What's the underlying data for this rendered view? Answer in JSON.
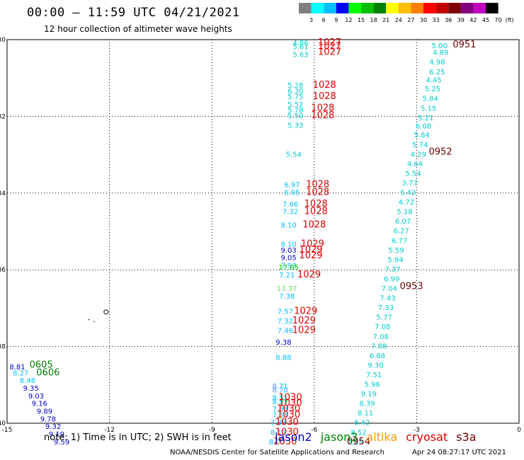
{
  "header": {
    "title": "00:00 – 11:59 UTC 04/21/2021",
    "subtitle": "12 hour collection of altimeter wave heights"
  },
  "color_scale": {
    "unit": "(ft)",
    "labels": [
      "3",
      "6",
      "9",
      "12",
      "15",
      "18",
      "21",
      "24",
      "27",
      "30",
      "33",
      "36",
      "39",
      "42",
      "45",
      "70"
    ],
    "colors": [
      "#7f7f7f",
      "#00ffff",
      "#00bfff",
      "#0000ff",
      "#00ff00",
      "#00c000",
      "#008000",
      "#ffff00",
      "#ffbf00",
      "#ff8000",
      "#ff0000",
      "#c00000",
      "#800000",
      "#800080",
      "#c000c0",
      "#000000"
    ]
  },
  "footer": {
    "note": "note:  1) Time is in UTC;  2) SWH is in feet",
    "credit": "NOAA/NESDIS Center for Satellite Applications and Research",
    "timestamp": "Apr 24 08:27:17 UTC 2021"
  },
  "missions": [
    {
      "name": "jason2",
      "color": "#0000c8"
    },
    {
      "name": "jason3",
      "color": "#008000"
    },
    {
      "name": "altika",
      "color": "#ff9900"
    },
    {
      "name": "cryosat",
      "color": "#dd0000"
    },
    {
      "name": "s3a",
      "color": "#6b0000"
    }
  ],
  "chart_data": {
    "type": "scatter",
    "xlim": [
      -15,
      0
    ],
    "ylim": [
      -40,
      -30
    ],
    "x_ticks": [
      -15,
      -12,
      -9,
      -6,
      -3,
      0
    ],
    "y_ticks": [
      -30,
      -32,
      -34,
      -36,
      -38,
      -40
    ],
    "grid": true,
    "series": [
      {
        "name": "s3a",
        "color": "#6b0000",
        "points": [
          {
            "x": -2.33,
            "y": -30.22,
            "label": "5.00"
          },
          {
            "x": -2.3,
            "y": -30.4,
            "label": "4.89"
          },
          {
            "x": -2.4,
            "y": -30.65,
            "label": "4.98"
          },
          {
            "x": -2.4,
            "y": -30.9,
            "label": "6.25"
          },
          {
            "x": -2.5,
            "y": -31.12,
            "label": "4.45"
          },
          {
            "x": -2.53,
            "y": -31.35,
            "label": "5.25"
          },
          {
            "x": -2.6,
            "y": -31.6,
            "label": "5.84"
          },
          {
            "x": -2.65,
            "y": -31.85,
            "label": "5.15"
          },
          {
            "x": -2.73,
            "y": -32.1,
            "label": "5.21"
          },
          {
            "x": -2.8,
            "y": -32.32,
            "label": "6.08"
          },
          {
            "x": -2.85,
            "y": -32.55,
            "label": "5.84"
          },
          {
            "x": -2.9,
            "y": -32.8,
            "label": "5.74"
          },
          {
            "x": -2.95,
            "y": -33.05,
            "label": "4.29"
          },
          {
            "x": -3.05,
            "y": -33.3,
            "label": "4.64"
          },
          {
            "x": -3.1,
            "y": -33.55,
            "label": "5.54"
          },
          {
            "x": -3.2,
            "y": -33.8,
            "label": "3.77"
          },
          {
            "x": -3.25,
            "y": -34.05,
            "label": "5.42"
          },
          {
            "x": -3.3,
            "y": -34.3,
            "label": "4.72"
          },
          {
            "x": -3.35,
            "y": -34.55,
            "label": "5.18"
          },
          {
            "x": -3.4,
            "y": -34.8,
            "label": "6.07"
          },
          {
            "x": -3.45,
            "y": -35.05,
            "label": "6.27"
          },
          {
            "x": -3.5,
            "y": -35.3,
            "label": "6.77"
          },
          {
            "x": -3.6,
            "y": -35.55,
            "label": "5.59"
          },
          {
            "x": -3.62,
            "y": -35.8,
            "label": "5.94"
          },
          {
            "x": -3.7,
            "y": -36.05,
            "label": "7.37"
          },
          {
            "x": -3.73,
            "y": -36.3,
            "label": "6.99"
          },
          {
            "x": -3.8,
            "y": -36.55,
            "label": "7.04"
          },
          {
            "x": -3.85,
            "y": -36.8,
            "label": "7.43"
          },
          {
            "x": -3.9,
            "y": -37.05,
            "label": "7.33"
          },
          {
            "x": -3.95,
            "y": -37.3,
            "label": "5.77"
          },
          {
            "x": -4.0,
            "y": -37.55,
            "label": "7.08"
          },
          {
            "x": -4.05,
            "y": -37.8,
            "label": "7.08"
          },
          {
            "x": -4.1,
            "y": -38.05,
            "label": "7.88"
          },
          {
            "x": -4.15,
            "y": -38.3,
            "label": "6.68"
          },
          {
            "x": -4.2,
            "y": -38.55,
            "label": "9.30"
          },
          {
            "x": -4.25,
            "y": -38.8,
            "label": "7.51"
          },
          {
            "x": -4.3,
            "y": -39.05,
            "label": "5.96"
          },
          {
            "x": -4.4,
            "y": -39.3,
            "label": "9.19"
          },
          {
            "x": -4.45,
            "y": -39.55,
            "label": "8.39"
          },
          {
            "x": -4.5,
            "y": -39.8,
            "label": "8.11"
          },
          {
            "x": -4.6,
            "y": -40.05,
            "label": "8.42"
          },
          {
            "x": -4.7,
            "y": -40.3,
            "label": "8.52"
          },
          {
            "x": -4.8,
            "y": -40.55,
            "label": "7.65"
          }
        ]
      }
    ],
    "annotations": [
      {
        "x": -1.6,
        "y": -30.2,
        "label": "0951",
        "color": "#6b0000"
      },
      {
        "x": -2.3,
        "y": -33.0,
        "label": "0952",
        "color": "#6b0000"
      },
      {
        "x": -3.15,
        "y": -36.5,
        "label": "0953",
        "color": "#6b0000"
      },
      {
        "x": -4.7,
        "y": -40.55,
        "label": "0954",
        "color": "#6b0000"
      },
      {
        "x": -14.0,
        "y": -38.55,
        "label": "0605",
        "color": "#008000"
      },
      {
        "x": -13.8,
        "y": -38.75,
        "label": "0606",
        "color": "#008000"
      }
    ],
    "cryosat_labels": [
      {
        "x": -5.55,
        "y": -30.15,
        "label": "1027"
      },
      {
        "x": -5.55,
        "y": -30.25,
        "label": "1027"
      },
      {
        "x": -5.55,
        "y": -30.4,
        "label": "1027"
      },
      {
        "x": -5.7,
        "y": -31.25,
        "label": "1028"
      },
      {
        "x": -5.7,
        "y": -31.55,
        "label": "1028"
      },
      {
        "x": -5.75,
        "y": -31.85,
        "label": "1028"
      },
      {
        "x": -5.75,
        "y": -32.05,
        "label": "1028"
      },
      {
        "x": -5.9,
        "y": -33.85,
        "label": "1028"
      },
      {
        "x": -5.9,
        "y": -34.05,
        "label": "1028"
      },
      {
        "x": -5.95,
        "y": -34.35,
        "label": "1028"
      },
      {
        "x": -5.95,
        "y": -34.55,
        "label": "1028"
      },
      {
        "x": -6.0,
        "y": -34.9,
        "label": "1028"
      },
      {
        "x": -6.05,
        "y": -35.4,
        "label": "1029"
      },
      {
        "x": -6.1,
        "y": -35.55,
        "label": "1029"
      },
      {
        "x": -6.1,
        "y": -35.7,
        "label": "1029"
      },
      {
        "x": -6.15,
        "y": -36.2,
        "label": "1029"
      },
      {
        "x": -6.25,
        "y": -37.15,
        "label": "1029"
      },
      {
        "x": -6.3,
        "y": -37.4,
        "label": "1029"
      },
      {
        "x": -6.3,
        "y": -37.65,
        "label": "1029"
      },
      {
        "x": -6.7,
        "y": -39.4,
        "label": "1030"
      },
      {
        "x": -6.7,
        "y": -39.55,
        "label": "1030"
      },
      {
        "x": -6.75,
        "y": -39.7,
        "label": "1030"
      },
      {
        "x": -6.75,
        "y": -39.85,
        "label": "1030"
      },
      {
        "x": -6.8,
        "y": -40.05,
        "label": "1030"
      },
      {
        "x": -6.8,
        "y": -40.3,
        "label": "1030"
      },
      {
        "x": -6.85,
        "y": -40.55,
        "label": "1030"
      }
    ],
    "cryosat_values": [
      {
        "x": -6.4,
        "y": -30.15,
        "label": "4.86",
        "c": "#00cccc"
      },
      {
        "x": -6.4,
        "y": -30.25,
        "label": "5.61",
        "c": "#00cccc"
      },
      {
        "x": -6.4,
        "y": -30.45,
        "label": "5.63",
        "c": "#00cccc"
      },
      {
        "x": -6.55,
        "y": -31.25,
        "label": "5.28",
        "c": "#00cccc"
      },
      {
        "x": -6.55,
        "y": -31.4,
        "label": "6.30",
        "c": "#00cccc"
      },
      {
        "x": -6.55,
        "y": -31.55,
        "label": "5.75",
        "c": "#00cccc"
      },
      {
        "x": -6.55,
        "y": -31.75,
        "label": "5.52",
        "c": "#00cccc"
      },
      {
        "x": -6.55,
        "y": -31.9,
        "label": "5.78",
        "c": "#00cccc"
      },
      {
        "x": -6.55,
        "y": -32.05,
        "label": "5.50",
        "c": "#00cccc"
      },
      {
        "x": -6.55,
        "y": -32.3,
        "label": "5.33",
        "c": "#00cccc"
      },
      {
        "x": -6.6,
        "y": -33.05,
        "label": "5.54",
        "c": "#00cccc"
      },
      {
        "x": -6.65,
        "y": -33.85,
        "label": "6.97",
        "c": "#00bfff"
      },
      {
        "x": -6.65,
        "y": -34.05,
        "label": "6.95",
        "c": "#00bfff"
      },
      {
        "x": -6.7,
        "y": -34.35,
        "label": "7.66",
        "c": "#00bfff"
      },
      {
        "x": -6.7,
        "y": -34.55,
        "label": "7.32",
        "c": "#00bfff"
      },
      {
        "x": -6.75,
        "y": -34.9,
        "label": "8.10",
        "c": "#00bfff"
      },
      {
        "x": -6.75,
        "y": -35.4,
        "label": "8.10",
        "c": "#00bfff"
      },
      {
        "x": -6.75,
        "y": -35.55,
        "label": "9.03",
        "c": "#0000c8"
      },
      {
        "x": -6.75,
        "y": -35.75,
        "label": "9.05",
        "c": "#0000c8"
      },
      {
        "x": -6.75,
        "y": -35.95,
        "label": "7.93",
        "c": "#00bfff"
      },
      {
        "x": -6.75,
        "y": -36.0,
        "label": "17.85",
        "c": "#00cc00"
      },
      {
        "x": -6.8,
        "y": -36.2,
        "label": "7.21",
        "c": "#00bfff"
      },
      {
        "x": -6.8,
        "y": -36.55,
        "label": "13.37",
        "c": "#66dd66"
      },
      {
        "x": -6.8,
        "y": -36.75,
        "label": "7.38",
        "c": "#00bfff"
      },
      {
        "x": -6.85,
        "y": -37.15,
        "label": "7.57",
        "c": "#00bfff"
      },
      {
        "x": -6.85,
        "y": -37.4,
        "label": "7.32",
        "c": "#00bfff"
      },
      {
        "x": -6.85,
        "y": -37.65,
        "label": "7.46",
        "c": "#00bfff"
      },
      {
        "x": -6.9,
        "y": -37.95,
        "label": "9.38",
        "c": "#0000c8"
      },
      {
        "x": -6.9,
        "y": -38.35,
        "label": "8.88",
        "c": "#00bfff"
      },
      {
        "x": -7.0,
        "y": -39.1,
        "label": "8.71",
        "c": "#00bfff"
      },
      {
        "x": -7.0,
        "y": -39.2,
        "label": "8.70",
        "c": "#00bfff"
      },
      {
        "x": -7.0,
        "y": -39.4,
        "label": "8.51",
        "c": "#00bfff"
      },
      {
        "x": -7.0,
        "y": -39.5,
        "label": "8.57",
        "c": "#00bfff"
      },
      {
        "x": -7.0,
        "y": -39.7,
        "label": "7.38",
        "c": "#00bfff"
      },
      {
        "x": -7.0,
        "y": -39.85,
        "label": "7.31",
        "c": "#00bfff"
      },
      {
        "x": -7.05,
        "y": -40.05,
        "label": "7.35",
        "c": "#00bfff"
      },
      {
        "x": -7.05,
        "y": -40.3,
        "label": "8.11",
        "c": "#00bfff"
      },
      {
        "x": -7.1,
        "y": -40.55,
        "label": "8.00",
        "c": "#00bfff"
      }
    ],
    "jason_values": [
      {
        "x": -14.7,
        "y": -38.6,
        "label": "8.81",
        "c": "#0000c8"
      },
      {
        "x": -14.6,
        "y": -38.75,
        "label": "8.27",
        "c": "#00bfff"
      },
      {
        "x": -14.4,
        "y": -38.95,
        "label": "8.48",
        "c": "#00bfff"
      },
      {
        "x": -14.3,
        "y": -39.15,
        "label": "9.35",
        "c": "#0000c8"
      },
      {
        "x": -14.15,
        "y": -39.35,
        "label": "9.03",
        "c": "#0000c8"
      },
      {
        "x": -14.05,
        "y": -39.55,
        "label": "9.16",
        "c": "#0000c8"
      },
      {
        "x": -13.9,
        "y": -39.75,
        "label": "9.89",
        "c": "#0000c8"
      },
      {
        "x": -13.8,
        "y": -39.95,
        "label": "9.78",
        "c": "#0000c8"
      },
      {
        "x": -13.65,
        "y": -40.15,
        "label": "9.32",
        "c": "#0000c8"
      },
      {
        "x": -13.55,
        "y": -40.35,
        "label": "9.19",
        "c": "#0000c8"
      },
      {
        "x": -13.4,
        "y": -40.55,
        "label": "9.59",
        "c": "#0000c8"
      }
    ]
  }
}
